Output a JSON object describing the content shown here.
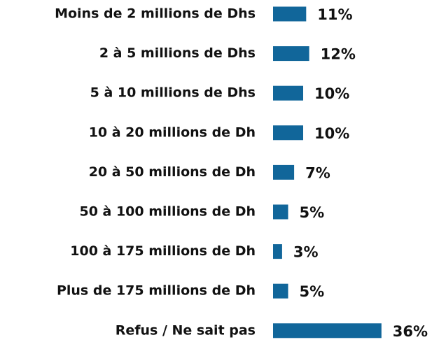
{
  "chart_data": {
    "type": "bar",
    "orientation": "horizontal",
    "categories": [
      "Moins de 2 millions de Dhs",
      "2 à 5 millions de Dhs",
      "5 à 10 millions de Dhs",
      "10 à 20 millions de Dh",
      "20 à 50 millions de Dh",
      "50 à 100 millions de Dh",
      "100 à 175 millions de Dh",
      "Plus de 175 millions de Dh",
      "Refus / Ne sait pas"
    ],
    "values": [
      11,
      12,
      10,
      10,
      7,
      5,
      3,
      5,
      36
    ],
    "value_labels": [
      "11%",
      "12%",
      "10%",
      "10%",
      "7%",
      "5%",
      "3%",
      "5%",
      "36%"
    ],
    "color": "#11669a"
  }
}
